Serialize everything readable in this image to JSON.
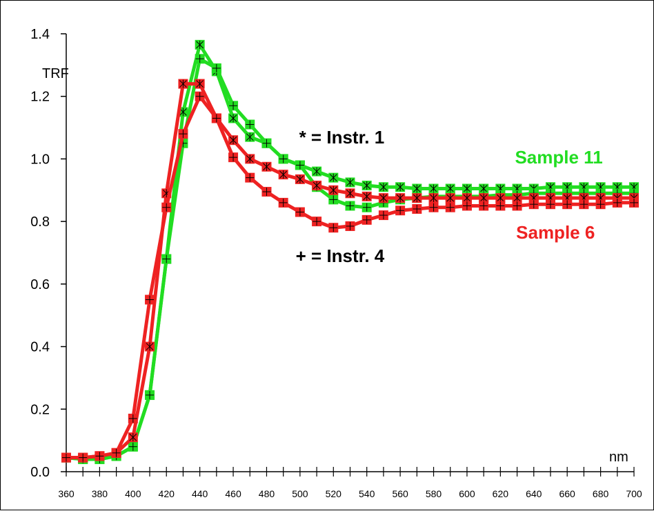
{
  "chart_data": {
    "type": "line",
    "title": "",
    "xlabel": "nm",
    "ylabel": "TRF",
    "xlim": [
      360,
      700
    ],
    "ylim": [
      0.0,
      1.4
    ],
    "x_ticks": [
      360,
      370,
      380,
      390,
      400,
      410,
      420,
      430,
      440,
      450,
      460,
      470,
      480,
      490,
      500,
      510,
      520,
      530,
      540,
      550,
      560,
      570,
      580,
      590,
      600,
      610,
      620,
      630,
      640,
      650,
      660,
      670,
      680,
      690,
      700
    ],
    "x_tick_labels": [
      "360",
      "",
      "380",
      "",
      "400",
      "",
      "420",
      "",
      "440",
      "",
      "460",
      "",
      "480",
      "",
      "500",
      "",
      "520",
      "",
      "540",
      "",
      "560",
      "",
      "580",
      "",
      "600",
      "",
      "620",
      "",
      "640",
      "",
      "660",
      "",
      "680",
      "",
      "700"
    ],
    "y_ticks": [
      0.0,
      0.2,
      0.4,
      0.6,
      0.8,
      1.0,
      1.2,
      1.4
    ],
    "y_tick_labels": [
      "0.0",
      "0.2",
      "0.4",
      "0.6",
      "0.8",
      "1.0",
      "1.2",
      "1.4"
    ],
    "grid": false,
    "x": [
      360,
      370,
      380,
      390,
      400,
      410,
      420,
      430,
      440,
      450,
      460,
      470,
      480,
      490,
      500,
      510,
      520,
      530,
      540,
      550,
      560,
      570,
      580,
      590,
      600,
      610,
      620,
      630,
      640,
      650,
      660,
      670,
      680,
      690,
      700
    ],
    "series": [
      {
        "color": "#22dd22",
        "marker": "*",
        "values": [
          0.045,
          0.04,
          0.04,
          0.05,
          0.08,
          0.245,
          0.68,
          1.15,
          1.365,
          1.28,
          1.13,
          1.07,
          1.05,
          1.0,
          0.98,
          0.96,
          0.94,
          0.925,
          0.915,
          0.91,
          0.91,
          0.905,
          0.905,
          0.905,
          0.905,
          0.905,
          0.905,
          0.905,
          0.905,
          0.91,
          0.91,
          0.91,
          0.91,
          0.91,
          0.91
        ]
      },
      {
        "color": "#22dd22",
        "marker": "+",
        "values": [
          0.045,
          0.04,
          0.04,
          0.05,
          0.08,
          0.245,
          0.68,
          1.05,
          1.32,
          1.29,
          1.17,
          1.11,
          1.05,
          1.0,
          0.98,
          0.91,
          0.87,
          0.85,
          0.845,
          0.86,
          0.87,
          0.875,
          0.88,
          0.88,
          0.88,
          0.88,
          0.885,
          0.885,
          0.89,
          0.89,
          0.89,
          0.89,
          0.89,
          0.89,
          0.89
        ]
      },
      {
        "color": "#ee2222",
        "marker": "*",
        "values": [
          0.045,
          0.045,
          0.05,
          0.06,
          0.11,
          0.4,
          0.89,
          1.24,
          1.24,
          1.13,
          1.06,
          1.0,
          0.975,
          0.95,
          0.935,
          0.915,
          0.9,
          0.89,
          0.88,
          0.875,
          0.875,
          0.875,
          0.875,
          0.875,
          0.875,
          0.875,
          0.875,
          0.875,
          0.875,
          0.875,
          0.875,
          0.875,
          0.875,
          0.875,
          0.875
        ]
      },
      {
        "color": "#ee2222",
        "marker": "+",
        "values": [
          0.045,
          0.045,
          0.05,
          0.06,
          0.17,
          0.55,
          0.845,
          1.08,
          1.2,
          1.13,
          1.005,
          0.94,
          0.895,
          0.86,
          0.83,
          0.8,
          0.78,
          0.785,
          0.805,
          0.82,
          0.835,
          0.84,
          0.845,
          0.845,
          0.85,
          0.85,
          0.85,
          0.85,
          0.855,
          0.855,
          0.855,
          0.855,
          0.855,
          0.86,
          0.86
        ]
      }
    ],
    "annotations": [
      {
        "text": "* = Instr. 1",
        "color": "#000000",
        "x": 525,
        "y": 1.05
      },
      {
        "text": "+ = Instr. 4",
        "color": "#000000",
        "x": 524,
        "y": 0.67
      },
      {
        "text": "Sample 11",
        "color": "#22dd22",
        "x": 655,
        "y": 0.985
      },
      {
        "text": "Sample 6",
        "color": "#ee2222",
        "x": 653,
        "y": 0.745
      }
    ]
  }
}
